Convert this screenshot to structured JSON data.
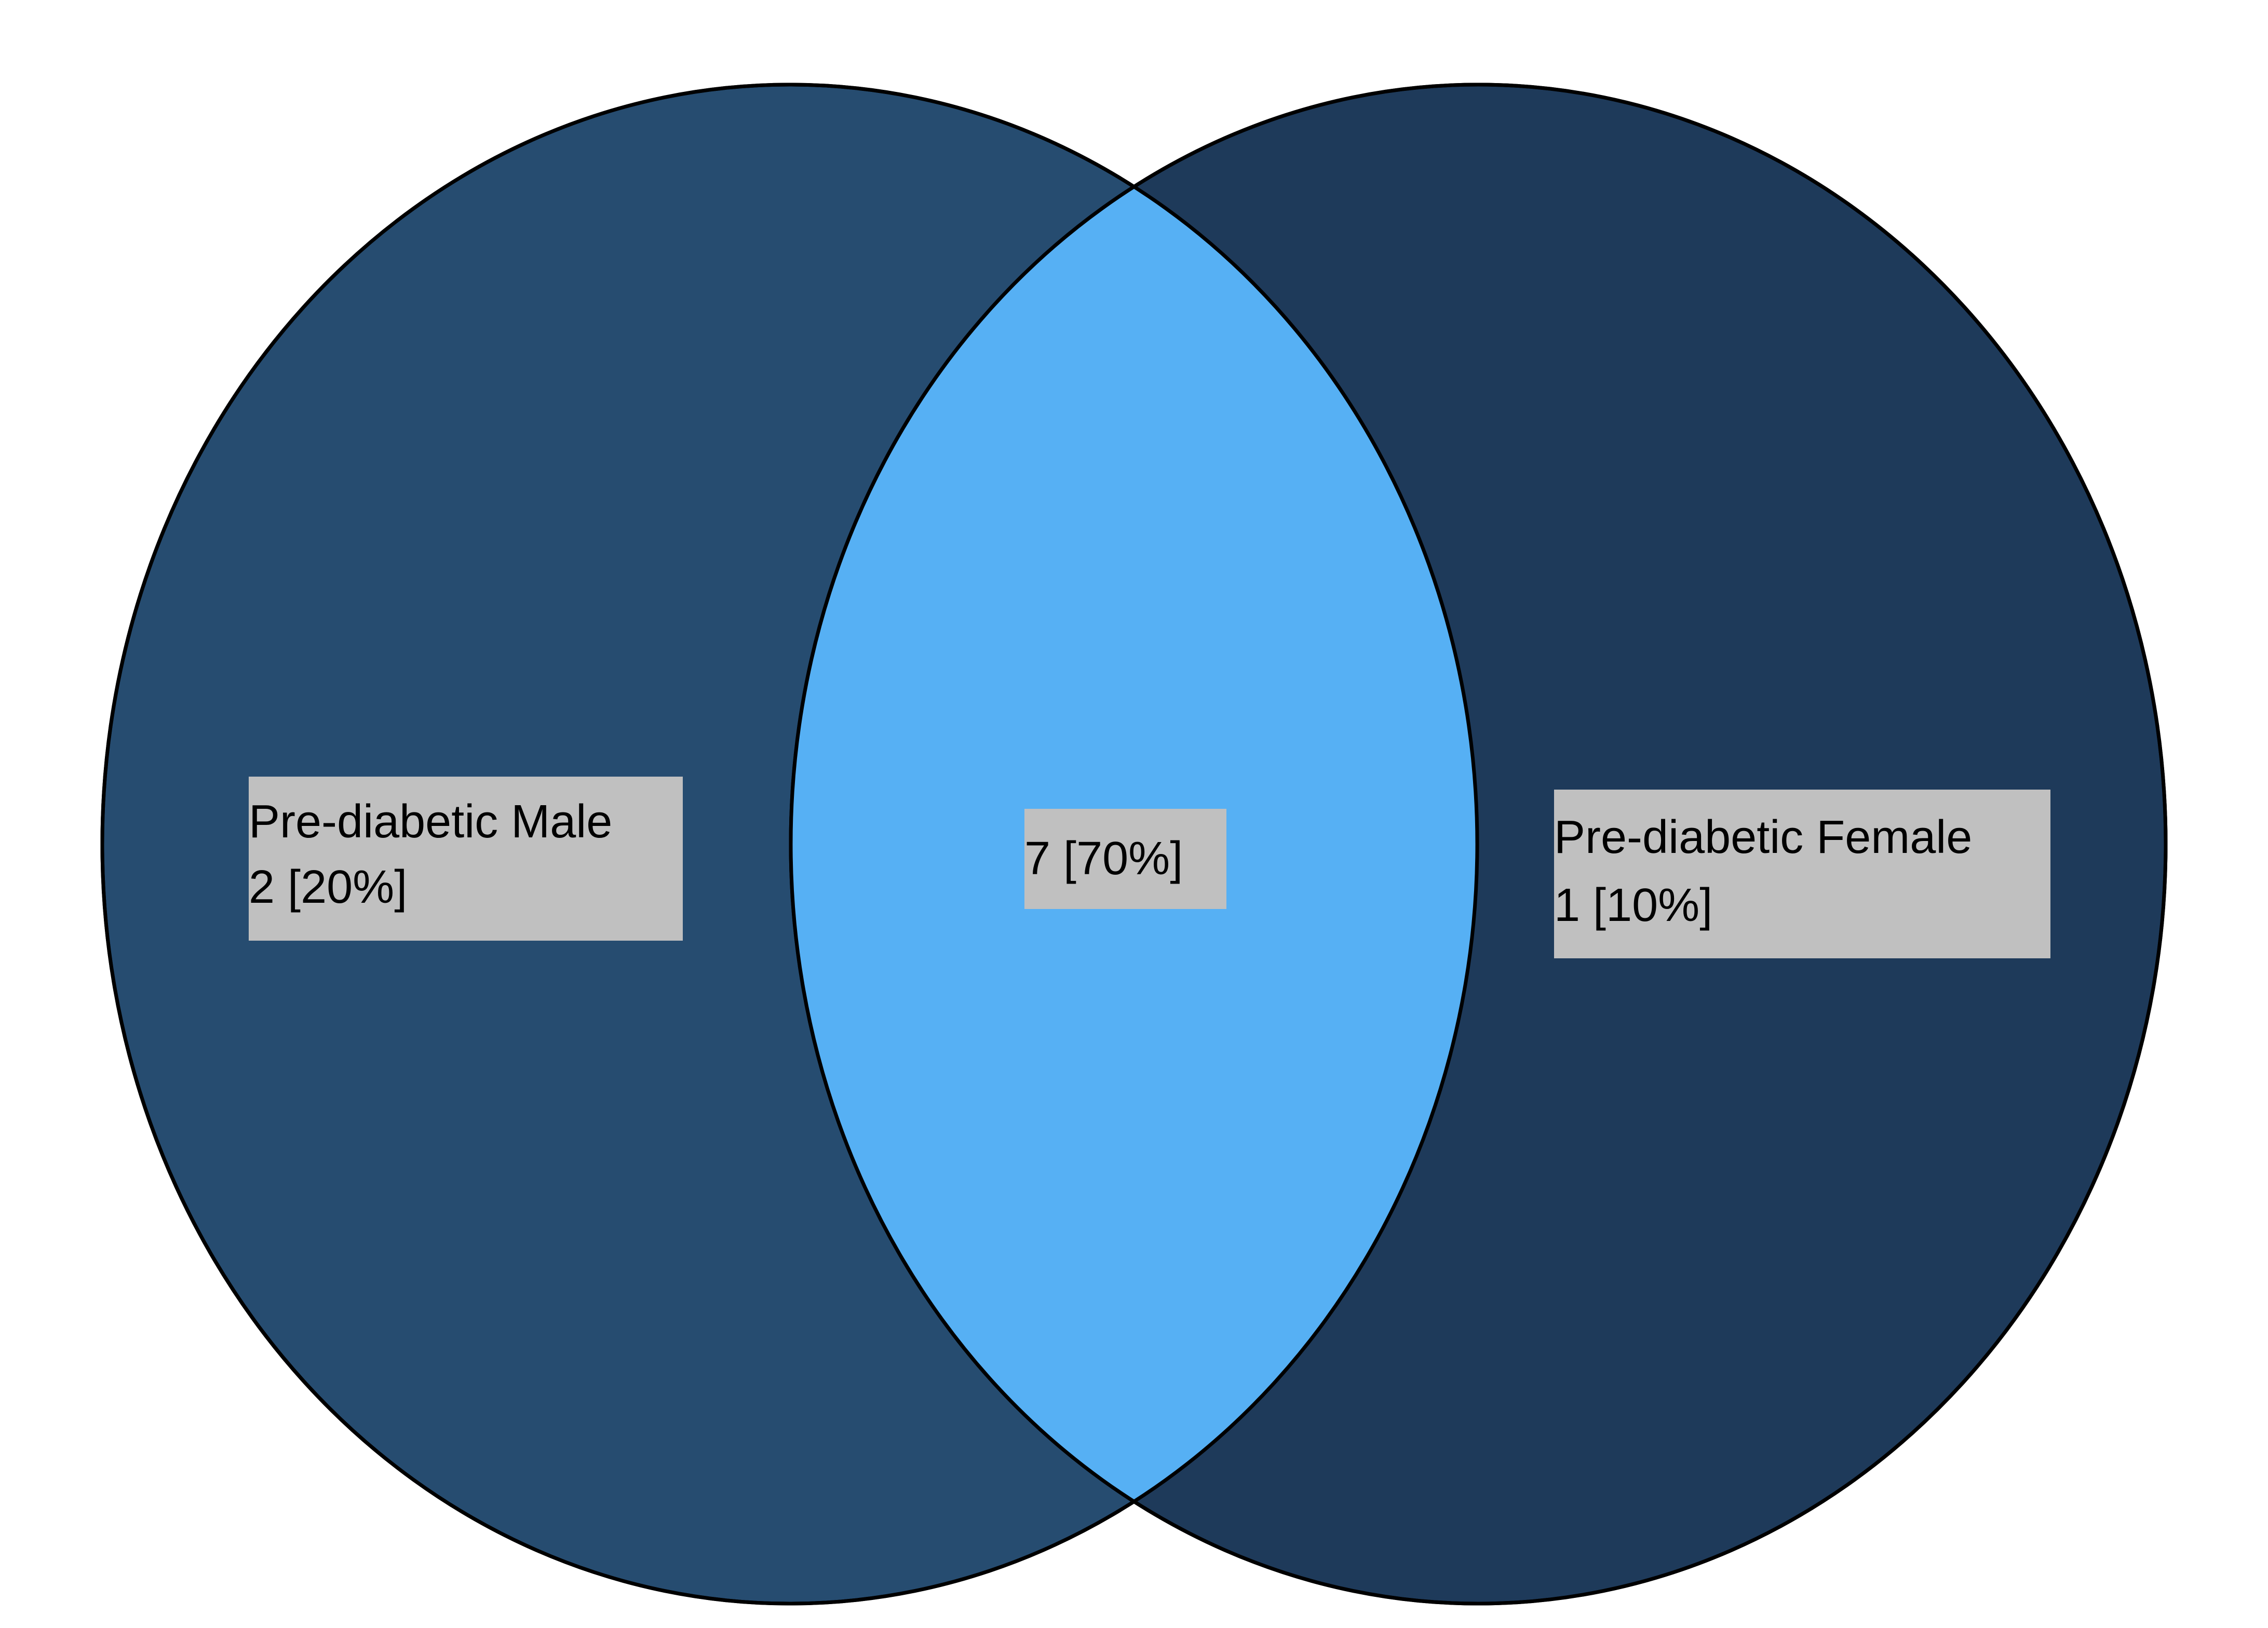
{
  "diagram": {
    "type": "venn",
    "colors": {
      "left_only": "#264c70",
      "right_only": "#1e3a5a",
      "overlap": "#56b0f4",
      "outline": "#000000",
      "label_background": "#c0c0c0"
    },
    "sets": [
      {
        "name": "Pre-diabetic Male",
        "value_label": "2 [20%]",
        "count": 2,
        "percent": 20
      },
      {
        "name": "Pre-diabetic Female",
        "value_label": "1 [10%]",
        "count": 1,
        "percent": 10
      }
    ],
    "intersection": {
      "value_label": "7 [70%]",
      "count": 7,
      "percent": 70
    }
  }
}
